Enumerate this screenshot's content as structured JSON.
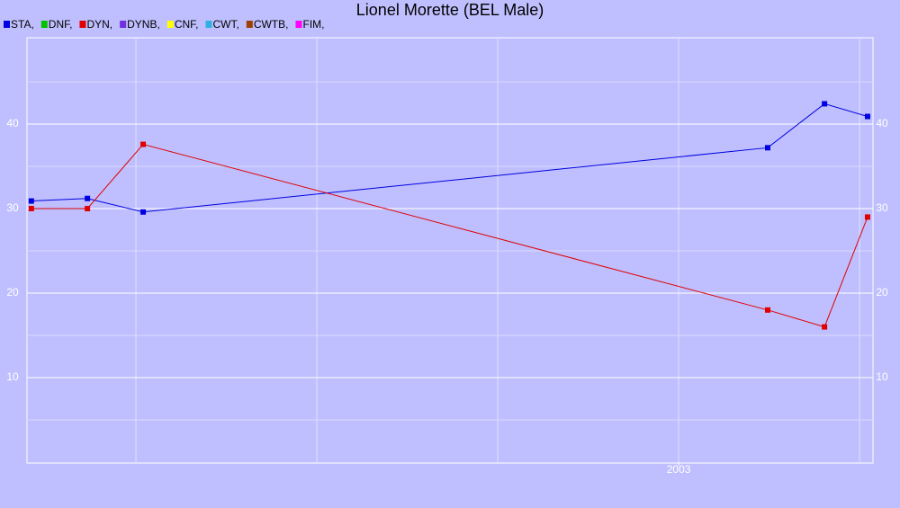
{
  "chart_data": {
    "type": "line",
    "title": "Lionel Morette (BEL Male)",
    "series": [
      {
        "name": "STA,",
        "color": "#0000e0",
        "x": [
          2001.211,
          2001.366,
          2001.52,
          2003.246,
          2003.403,
          2003.522
        ],
        "values": [
          30.9,
          31.2,
          29.6,
          37.2,
          42.4,
          40.9
        ]
      },
      {
        "name": "DNF,",
        "color": "#00c000",
        "x": [],
        "values": []
      },
      {
        "name": "DYN,",
        "color": "#e00000",
        "x": [
          2001.211,
          2001.366,
          2001.52,
          2003.246,
          2003.403,
          2003.522
        ],
        "values": [
          30,
          30,
          37.6,
          18,
          16,
          29
        ]
      },
      {
        "name": "DYNB,",
        "color": "#7030e0",
        "x": [],
        "values": []
      },
      {
        "name": "CNF,",
        "color": "#ffff00",
        "x": [],
        "values": []
      },
      {
        "name": "CWT,",
        "color": "#30b0e0",
        "x": [],
        "values": []
      },
      {
        "name": "CWTB,",
        "color": "#a04000",
        "x": [],
        "values": []
      },
      {
        "name": "FIM,",
        "color": "#ff00ff",
        "x": [],
        "values": []
      }
    ],
    "xlim": [
      2001.199,
      2003.537
    ],
    "xticks": [
      2003
    ],
    "x_grid": [
      2001.5,
      2002,
      2002.5,
      2003,
      2003.5
    ],
    "ylim": [
      0,
      50
    ],
    "yticks": [
      10,
      20,
      30,
      40
    ],
    "y_minor_grid": [
      5,
      15,
      25,
      35,
      45
    ],
    "grid": true
  }
}
